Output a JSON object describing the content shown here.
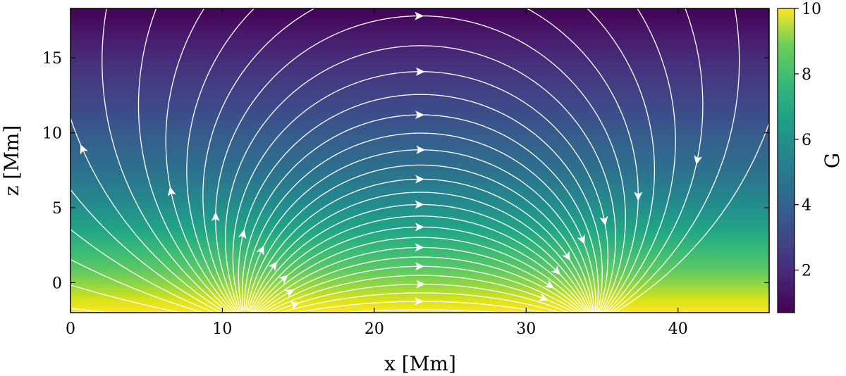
{
  "chart_data": {
    "type": "heatmap",
    "subtype": "streamplot-over-field",
    "xlabel": "x [Mm]",
    "ylabel": "z [Mm]",
    "xlim": [
      0,
      46
    ],
    "ylim": [
      -2,
      18.3
    ],
    "x_ticks": [
      0,
      10,
      20,
      30,
      40
    ],
    "x_tick_labels": [
      "0",
      "10",
      "20",
      "30",
      "40"
    ],
    "y_ticks": [
      0,
      5,
      10,
      15
    ],
    "y_tick_labels": [
      "0",
      "5",
      "10",
      "15"
    ],
    "colorbar": {
      "label": "G",
      "range": [
        0.7,
        10
      ],
      "ticks": [
        2,
        4,
        6,
        8,
        10
      ],
      "tick_labels": [
        "2",
        "4",
        "6",
        "8",
        "10"
      ],
      "colormap": "viridis"
    },
    "field": {
      "description_values": "field strength decreases with height",
      "samples": [
        {
          "z": -2,
          "value": 10
        },
        {
          "z": 0,
          "value": 8.8
        },
        {
          "z": 2,
          "value": 6.6
        },
        {
          "z": 5,
          "value": 4.3
        },
        {
          "z": 10,
          "value": 2.2
        },
        {
          "z": 15,
          "value": 1.2
        },
        {
          "z": 18.3,
          "value": 0.8
        }
      ]
    },
    "sources": [
      {
        "polarity": "positive",
        "x": 11.5,
        "z": -2
      },
      {
        "polarity": "negative",
        "x": 34.5,
        "z": -2
      }
    ],
    "line_color": "#ffffff",
    "grid": false
  }
}
